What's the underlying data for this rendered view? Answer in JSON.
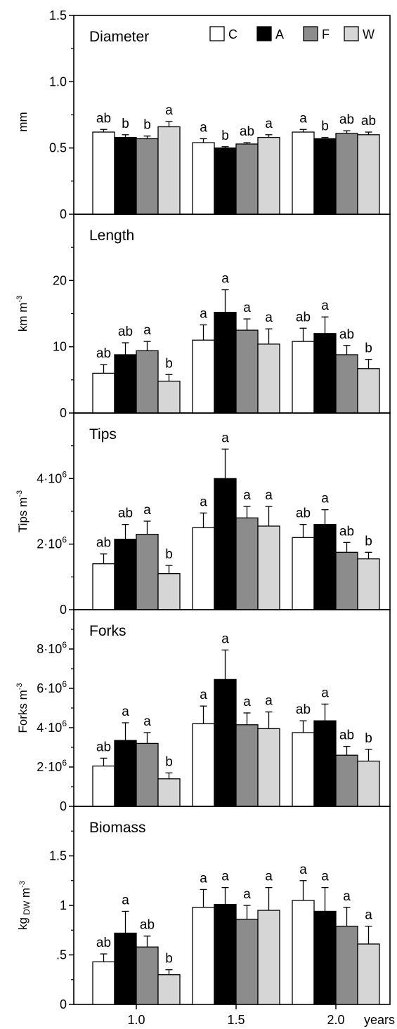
{
  "chart_data": {
    "type": "bar",
    "categories": [
      "1.0",
      "1.5",
      "2.0"
    ],
    "x_unit": "years",
    "legend": {
      "placement": "top-right",
      "entries": [
        {
          "label": "C",
          "color": "#ffffff"
        },
        {
          "label": "A",
          "color": "#000000"
        },
        {
          "label": "F",
          "color": "#8c8c8c"
        },
        {
          "label": "W",
          "color": "#d6d6d6"
        }
      ]
    },
    "panels": [
      {
        "title": "Diameter",
        "ylabel": "mm",
        "ylim": [
          0,
          1.5
        ],
        "yticks": [
          {
            "v": 0,
            "label": "0"
          },
          {
            "v": 0.5,
            "label": "0.5"
          },
          {
            "v": 1.0,
            "label": "1.0"
          },
          {
            "v": 1.5,
            "label": "1.5"
          }
        ],
        "series": [
          {
            "name": "C",
            "values": [
              0.62,
              0.54,
              0.62
            ],
            "errors": [
              0.02,
              0.03,
              0.02
            ],
            "letters": [
              "ab",
              "a",
              "a"
            ]
          },
          {
            "name": "A",
            "values": [
              0.58,
              0.5,
              0.57
            ],
            "errors": [
              0.02,
              0.01,
              0.01
            ],
            "letters": [
              "b",
              "b",
              "b"
            ]
          },
          {
            "name": "F",
            "values": [
              0.57,
              0.53,
              0.61
            ],
            "errors": [
              0.02,
              0.01,
              0.02
            ],
            "letters": [
              "b",
              "ab",
              "ab"
            ]
          },
          {
            "name": "W",
            "values": [
              0.66,
              0.58,
              0.6
            ],
            "errors": [
              0.04,
              0.02,
              0.02
            ],
            "letters": [
              "a",
              "a",
              "ab"
            ]
          }
        ]
      },
      {
        "title": "Length",
        "ylabel": "km m-3",
        "ylim": [
          0,
          30
        ],
        "yticks": [
          {
            "v": 0,
            "label": "0"
          },
          {
            "v": 10,
            "label": "10"
          },
          {
            "v": 20,
            "label": "20"
          }
        ],
        "series": [
          {
            "name": "C",
            "values": [
              6,
              11,
              10.8
            ],
            "errors": [
              1.3,
              2.3,
              2
            ],
            "letters": [
              "ab",
              "a",
              "ab"
            ]
          },
          {
            "name": "A",
            "values": [
              8.8,
              15.2,
              12
            ],
            "errors": [
              1.8,
              3.4,
              2.5
            ],
            "letters": [
              "ab",
              "a",
              "a"
            ]
          },
          {
            "name": "F",
            "values": [
              9.4,
              12.5,
              8.8
            ],
            "errors": [
              1.4,
              1.7,
              1.4
            ],
            "letters": [
              "a",
              "a",
              "ab"
            ]
          },
          {
            "name": "W",
            "values": [
              4.8,
              10.4,
              6.7
            ],
            "errors": [
              1,
              2.3,
              1.4
            ],
            "letters": [
              "b",
              "a",
              "b"
            ]
          }
        ]
      },
      {
        "title": "Tips",
        "ylabel": "Tips m-3",
        "ylim": [
          0,
          6000000
        ],
        "yticks": [
          {
            "v": 0,
            "label": "0"
          },
          {
            "v": 2000000,
            "label": "2·106"
          },
          {
            "v": 4000000,
            "label": "4·106"
          }
        ],
        "series": [
          {
            "name": "C",
            "values": [
              1400000,
              2500000,
              2200000
            ],
            "errors": [
              300000,
              450000,
              400000
            ],
            "letters": [
              "ab",
              "a",
              "ab"
            ]
          },
          {
            "name": "A",
            "values": [
              2150000,
              4000000,
              2600000
            ],
            "errors": [
              450000,
              900000,
              450000
            ],
            "letters": [
              "ab",
              "a",
              "a"
            ]
          },
          {
            "name": "F",
            "values": [
              2300000,
              2800000,
              1750000
            ],
            "errors": [
              400000,
              350000,
              300000
            ],
            "letters": [
              "a",
              "a",
              "ab"
            ]
          },
          {
            "name": "W",
            "values": [
              1100000,
              2550000,
              1550000
            ],
            "errors": [
              250000,
              600000,
              200000
            ],
            "letters": [
              "b",
              "a",
              "b"
            ]
          }
        ]
      },
      {
        "title": "Forks",
        "ylabel": "Forks m-3",
        "ylim": [
          0,
          10000000
        ],
        "yticks": [
          {
            "v": 0,
            "label": "0"
          },
          {
            "v": 2000000,
            "label": "2·106"
          },
          {
            "v": 4000000,
            "label": "4·106"
          },
          {
            "v": 6000000,
            "label": "6·106"
          },
          {
            "v": 8000000,
            "label": "8·106"
          }
        ],
        "series": [
          {
            "name": "C",
            "values": [
              2050000,
              4200000,
              3750000
            ],
            "errors": [
              400000,
              900000,
              600000
            ],
            "letters": [
              "ab",
              "a",
              "ab"
            ]
          },
          {
            "name": "A",
            "values": [
              3350000,
              6450000,
              4350000
            ],
            "errors": [
              900000,
              1500000,
              850000
            ],
            "letters": [
              "a",
              "a",
              "a"
            ]
          },
          {
            "name": "F",
            "values": [
              3200000,
              4150000,
              2600000
            ],
            "errors": [
              550000,
              600000,
              450000
            ],
            "letters": [
              "a",
              "a",
              "ab"
            ]
          },
          {
            "name": "W",
            "values": [
              1400000,
              3950000,
              2300000
            ],
            "errors": [
              300000,
              850000,
              600000
            ],
            "letters": [
              "b",
              "a",
              "b"
            ]
          }
        ]
      },
      {
        "title": "Biomass",
        "ylabel": "kg DW m-3",
        "ylim": [
          0,
          2
        ],
        "yticks": [
          {
            "v": 0,
            "label": "0"
          },
          {
            "v": 0.5,
            "label": ".5"
          },
          {
            "v": 1,
            "label": "1"
          },
          {
            "v": 1.5,
            "label": "1.5"
          }
        ],
        "series": [
          {
            "name": "C",
            "values": [
              0.43,
              0.98,
              1.05
            ],
            "errors": [
              0.08,
              0.18,
              0.2
            ],
            "letters": [
              "ab",
              "a",
              "a"
            ]
          },
          {
            "name": "A",
            "values": [
              0.72,
              1.01,
              0.94
            ],
            "errors": [
              0.22,
              0.17,
              0.24
            ],
            "letters": [
              "a",
              "a",
              "a"
            ]
          },
          {
            "name": "F",
            "values": [
              0.58,
              0.86,
              0.79
            ],
            "errors": [
              0.11,
              0.14,
              0.19
            ],
            "letters": [
              "ab",
              "a",
              "a"
            ]
          },
          {
            "name": "W",
            "values": [
              0.3,
              0.95,
              0.61
            ],
            "errors": [
              0.05,
              0.23,
              0.18
            ],
            "letters": [
              "b",
              "a",
              "a"
            ]
          }
        ]
      }
    ]
  }
}
